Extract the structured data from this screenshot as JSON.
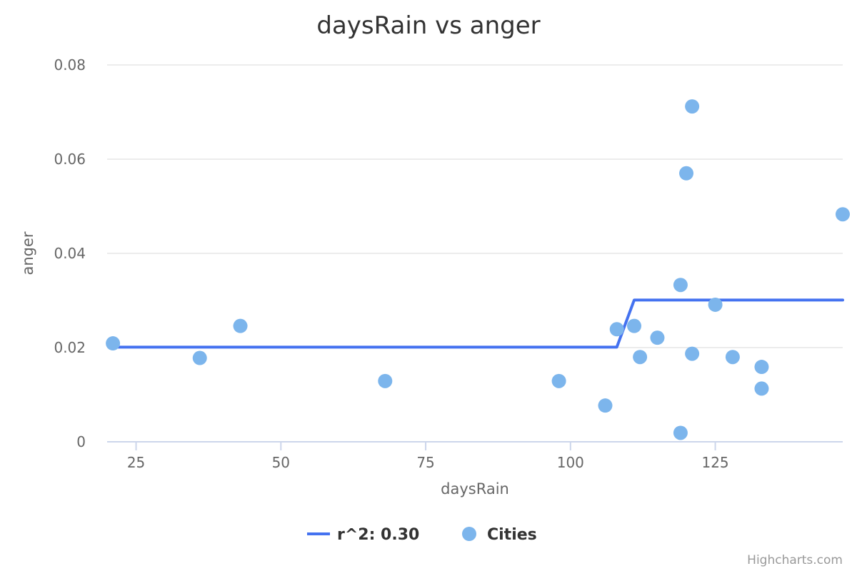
{
  "chart_data": {
    "type": "scatter",
    "title": "daysRain vs anger",
    "xlabel": "daysRain",
    "ylabel": "anger",
    "xlim": [
      20,
      147
    ],
    "ylim": [
      0,
      0.08
    ],
    "x_ticks": [
      25,
      50,
      75,
      100,
      125
    ],
    "x_tick_labels": [
      "25",
      "50",
      "75",
      "100",
      "125"
    ],
    "y_ticks": [
      0,
      0.02,
      0.04,
      0.06,
      0.08
    ],
    "y_tick_labels": [
      "0",
      "0.02",
      "0.04",
      "0.06",
      "0.08"
    ],
    "grid": "horizontal",
    "legend_position": "bottom-center",
    "series": [
      {
        "name": "r^2: 0.30",
        "type": "line",
        "color": "#4472f0",
        "points": [
          [
            21,
            0.0201
          ],
          [
            108,
            0.0201
          ],
          [
            111,
            0.0301
          ],
          [
            147,
            0.0301
          ]
        ]
      },
      {
        "name": "Cities",
        "type": "scatter",
        "color": "#7cb5ec",
        "points": [
          [
            21,
            0.0209
          ],
          [
            36,
            0.0178
          ],
          [
            43,
            0.0246
          ],
          [
            68,
            0.0129
          ],
          [
            98,
            0.0129
          ],
          [
            106,
            0.0077
          ],
          [
            108,
            0.0239
          ],
          [
            111,
            0.0246
          ],
          [
            112,
            0.018
          ],
          [
            115,
            0.0221
          ],
          [
            119,
            0.0333
          ],
          [
            119,
            0.0019
          ],
          [
            120,
            0.057
          ],
          [
            121,
            0.0712
          ],
          [
            121,
            0.0187
          ],
          [
            125,
            0.0291
          ],
          [
            128,
            0.018
          ],
          [
            133,
            0.0159
          ],
          [
            133,
            0.0113
          ],
          [
            147,
            0.0483
          ]
        ]
      }
    ]
  },
  "credits": "Highcharts.com"
}
